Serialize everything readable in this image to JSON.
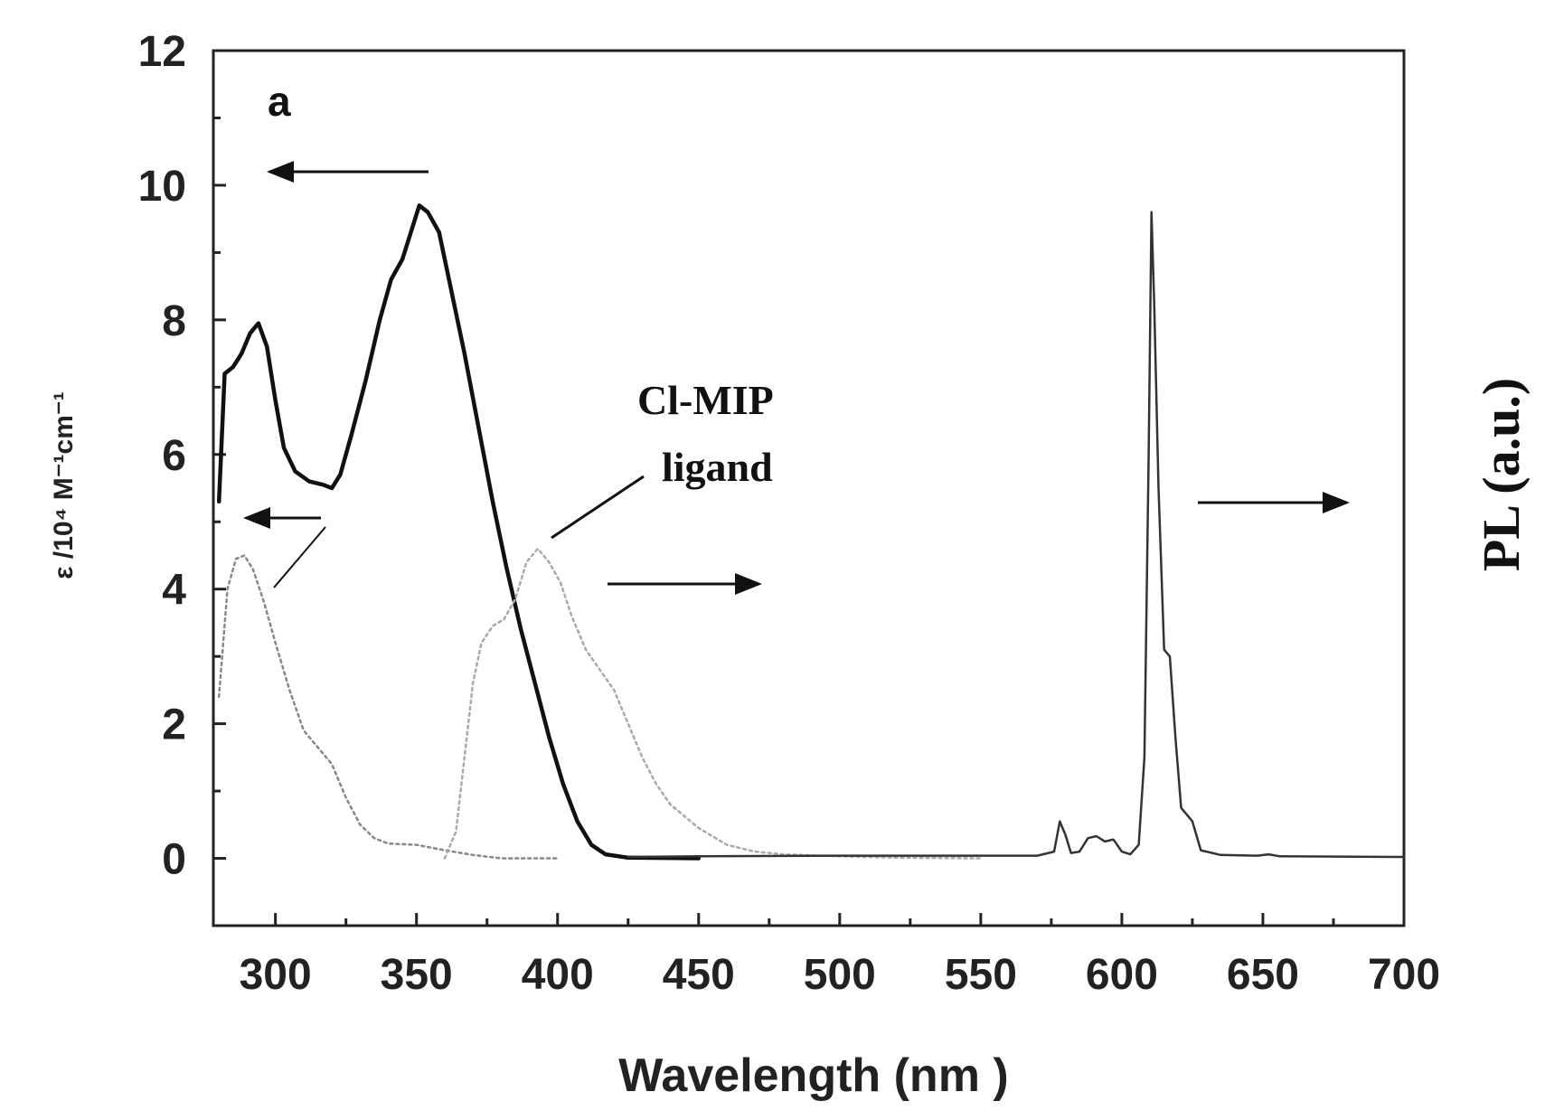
{
  "chart_data": {
    "type": "line",
    "panel_label": "a",
    "xlabel": "Wavelength (nm )",
    "ylabel_left": "ε /10⁴ M⁻¹cm⁻¹",
    "ylabel_right": "PL (a.u.)",
    "xlim": [
      278,
      700
    ],
    "ylim": [
      -1,
      12
    ],
    "x_ticks": [
      300,
      350,
      400,
      450,
      500,
      550,
      600,
      650,
      700
    ],
    "y_ticks": [
      0,
      2,
      4,
      6,
      8,
      10,
      12
    ],
    "annotation": [
      "Cl-MIP",
      "ligand"
    ],
    "colors": {
      "complex": "#111111",
      "ligand": "#aaaaaa",
      "axis": "#222222"
    },
    "series": [
      {
        "style": "solid-thick",
        "color": "#111111",
        "points": [
          [
            280,
            5.3
          ],
          [
            282,
            7.2
          ],
          [
            285,
            7.3
          ],
          [
            288,
            7.5
          ],
          [
            291,
            7.8
          ],
          [
            294,
            7.95
          ],
          [
            297,
            7.6
          ],
          [
            300,
            6.8
          ],
          [
            303,
            6.1
          ],
          [
            307,
            5.75
          ],
          [
            312,
            5.6
          ],
          [
            317,
            5.55
          ],
          [
            320,
            5.5
          ],
          [
            323,
            5.7
          ],
          [
            327,
            6.3
          ],
          [
            332,
            7.1
          ],
          [
            337,
            8.0
          ],
          [
            341,
            8.6
          ],
          [
            345,
            8.9
          ],
          [
            348,
            9.3
          ],
          [
            351,
            9.7
          ],
          [
            354,
            9.6
          ],
          [
            358,
            9.3
          ],
          [
            362,
            8.5
          ],
          [
            367,
            7.5
          ],
          [
            372,
            6.4
          ],
          [
            377,
            5.3
          ],
          [
            382,
            4.3
          ],
          [
            387,
            3.4
          ],
          [
            392,
            2.6
          ],
          [
            397,
            1.8
          ],
          [
            402,
            1.1
          ],
          [
            407,
            0.55
          ],
          [
            412,
            0.2
          ],
          [
            417,
            0.06
          ],
          [
            425,
            0.01
          ],
          [
            450,
            0.0
          ]
        ]
      },
      {
        "style": "dotted",
        "color": "#888888",
        "points": [
          [
            280,
            2.4
          ],
          [
            283,
            4.0
          ],
          [
            286,
            4.45
          ],
          [
            289,
            4.5
          ],
          [
            292,
            4.3
          ],
          [
            296,
            3.8
          ],
          [
            300,
            3.2
          ],
          [
            305,
            2.5
          ],
          [
            310,
            1.9
          ],
          [
            315,
            1.65
          ],
          [
            320,
            1.4
          ],
          [
            325,
            0.9
          ],
          [
            330,
            0.5
          ],
          [
            335,
            0.3
          ],
          [
            340,
            0.22
          ],
          [
            350,
            0.2
          ],
          [
            360,
            0.12
          ],
          [
            370,
            0.05
          ],
          [
            380,
            0.0
          ],
          [
            400,
            0.0
          ]
        ]
      },
      {
        "style": "dotted",
        "color": "#aaaaaa",
        "points": [
          [
            360,
            0.0
          ],
          [
            364,
            0.4
          ],
          [
            367,
            1.5
          ],
          [
            370,
            2.6
          ],
          [
            373,
            3.2
          ],
          [
            377,
            3.45
          ],
          [
            381,
            3.55
          ],
          [
            385,
            3.85
          ],
          [
            389,
            4.4
          ],
          [
            393,
            4.6
          ],
          [
            397,
            4.4
          ],
          [
            401,
            4.1
          ],
          [
            405,
            3.6
          ],
          [
            410,
            3.1
          ],
          [
            415,
            2.8
          ],
          [
            420,
            2.5
          ],
          [
            425,
            2.0
          ],
          [
            430,
            1.5
          ],
          [
            435,
            1.1
          ],
          [
            440,
            0.8
          ],
          [
            450,
            0.45
          ],
          [
            460,
            0.2
          ],
          [
            470,
            0.1
          ],
          [
            480,
            0.06
          ],
          [
            500,
            0.03
          ],
          [
            520,
            0.01
          ],
          [
            550,
            0.0
          ]
        ]
      },
      {
        "style": "solid-thin",
        "color": "#333333",
        "points": [
          [
            425,
            0.02
          ],
          [
            450,
            0.03
          ],
          [
            500,
            0.04
          ],
          [
            550,
            0.04
          ],
          [
            570,
            0.04
          ],
          [
            576,
            0.1
          ],
          [
            578,
            0.55
          ],
          [
            580,
            0.35
          ],
          [
            582,
            0.08
          ],
          [
            585,
            0.1
          ],
          [
            588,
            0.3
          ],
          [
            591,
            0.33
          ],
          [
            594,
            0.25
          ],
          [
            597,
            0.28
          ],
          [
            600,
            0.1
          ],
          [
            603,
            0.06
          ],
          [
            606,
            0.2
          ],
          [
            608,
            1.5
          ],
          [
            609.5,
            6.0
          ],
          [
            610.5,
            9.6
          ],
          [
            611.5,
            8.2
          ],
          [
            613,
            5.5
          ],
          [
            615,
            3.1
          ],
          [
            617,
            3.0
          ],
          [
            619,
            1.8
          ],
          [
            621,
            0.75
          ],
          [
            623,
            0.65
          ],
          [
            625,
            0.55
          ],
          [
            628,
            0.12
          ],
          [
            635,
            0.05
          ],
          [
            648,
            0.04
          ],
          [
            652,
            0.06
          ],
          [
            656,
            0.03
          ],
          [
            700,
            0.02
          ]
        ]
      }
    ]
  }
}
